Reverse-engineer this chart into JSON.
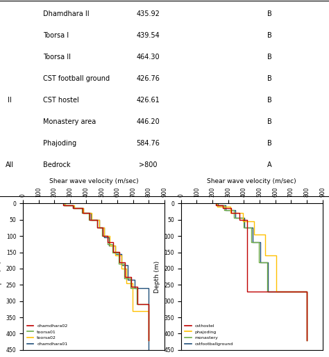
{
  "table": {
    "rows": [
      [
        "Dhamdhara II",
        "435.92",
        "B"
      ],
      [
        "Toorsa I",
        "439.54",
        "B"
      ],
      [
        "Toorsa II",
        "464.30",
        "B"
      ],
      [
        "CST football ground",
        "426.76",
        "B"
      ],
      [
        "CST hostel",
        "426.61",
        "B"
      ],
      [
        "Monastery area",
        "446.20",
        "B"
      ],
      [
        "Phajoding",
        "584.76",
        "B"
      ],
      [
        "Bedrock",
        ">800",
        "A"
      ]
    ]
  },
  "left_plot": {
    "title": "Shear wave velocity (m/sec)",
    "ylabel": "Depth (m)",
    "xlim": [
      0,
      900
    ],
    "ylim": [
      450,
      0
    ],
    "xticks": [
      0,
      100,
      200,
      300,
      400,
      500,
      600,
      700,
      800,
      900
    ],
    "yticks": [
      0,
      50,
      100,
      150,
      200,
      250,
      300,
      350,
      400,
      450
    ],
    "curves": {
      "dhamdhara01": {
        "color": "#1f4e79",
        "depths": [
          0,
          5,
          5,
          15,
          15,
          30,
          30,
          50,
          50,
          75,
          75,
          105,
          105,
          130,
          130,
          155,
          155,
          190,
          190,
          235,
          235,
          260,
          260,
          450
        ],
        "velocities": [
          260,
          260,
          320,
          320,
          385,
          385,
          430,
          430,
          485,
          485,
          515,
          515,
          545,
          545,
          585,
          585,
          625,
          625,
          665,
          665,
          710,
          710,
          800,
          800
        ]
      },
      "toorsa02": {
        "color": "#ffc000",
        "depths": [
          0,
          5,
          5,
          15,
          15,
          30,
          30,
          50,
          50,
          75,
          75,
          100,
          100,
          130,
          130,
          160,
          160,
          200,
          200,
          245,
          245,
          330,
          330,
          420
        ],
        "velocities": [
          270,
          270,
          325,
          325,
          385,
          385,
          435,
          435,
          485,
          485,
          515,
          515,
          550,
          550,
          585,
          585,
          625,
          625,
          655,
          655,
          695,
          695,
          800,
          800
        ]
      },
      "toorsa01": {
        "color": "#70ad47",
        "depths": [
          0,
          5,
          5,
          15,
          15,
          30,
          30,
          50,
          50,
          75,
          75,
          100,
          100,
          125,
          125,
          150,
          150,
          185,
          185,
          230,
          230,
          260,
          260,
          310,
          310,
          420
        ],
        "velocities": [
          260,
          260,
          315,
          315,
          375,
          375,
          418,
          418,
          472,
          472,
          502,
          502,
          538,
          538,
          568,
          568,
          608,
          608,
          643,
          643,
          683,
          683,
          723,
          723,
          800,
          800
        ]
      },
      "dhamdhara02": {
        "color": "#c00000",
        "depths": [
          0,
          5,
          5,
          15,
          15,
          30,
          30,
          50,
          50,
          75,
          75,
          100,
          100,
          120,
          120,
          148,
          148,
          180,
          180,
          225,
          225,
          255,
          255,
          310,
          310,
          420
        ],
        "velocities": [
          255,
          255,
          318,
          318,
          378,
          378,
          422,
          422,
          473,
          473,
          506,
          506,
          540,
          540,
          572,
          572,
          612,
          612,
          650,
          650,
          688,
          688,
          728,
          728,
          800,
          800
        ]
      }
    },
    "legend_order": [
      "dhamdhara02",
      "toorsa01",
      "toorsa02",
      "dhamdhara01"
    ],
    "legend_labels": [
      "dhamdhara02",
      "toorsa01",
      "toorsa02",
      "dhamdhara01"
    ],
    "legend_colors": [
      "#c00000",
      "#70ad47",
      "#ffc000",
      "#1f4e79"
    ]
  },
  "right_plot": {
    "title": "Shear wave velocity (m/sec)",
    "ylabel": "Depth (m)",
    "xlim": [
      0,
      900
    ],
    "ylim": [
      450,
      0
    ],
    "xticks": [
      0,
      100,
      200,
      300,
      400,
      500,
      600,
      700,
      800,
      900
    ],
    "yticks": [
      0,
      50,
      100,
      150,
      200,
      250,
      300,
      350,
      400,
      450
    ],
    "curves": {
      "cstfootballground": {
        "color": "#1f4e79",
        "depths": [
          0,
          5,
          5,
          20,
          20,
          45,
          45,
          75,
          75,
          120,
          120,
          180,
          180,
          270,
          270,
          420
        ],
        "velocities": [
          235,
          235,
          285,
          285,
          345,
          345,
          405,
          405,
          455,
          455,
          505,
          505,
          555,
          555,
          800,
          800
        ]
      },
      "monastery": {
        "color": "#70ad47",
        "depths": [
          0,
          5,
          5,
          20,
          20,
          45,
          45,
          75,
          75,
          120,
          120,
          180,
          180,
          270,
          270,
          420
        ],
        "velocities": [
          225,
          225,
          275,
          275,
          335,
          335,
          398,
          398,
          448,
          448,
          498,
          498,
          548,
          548,
          800,
          800
        ]
      },
      "phajoding": {
        "color": "#ffc000",
        "depths": [
          0,
          10,
          10,
          30,
          30,
          55,
          55,
          95,
          95,
          160,
          160,
          270,
          270,
          420
        ],
        "velocities": [
          230,
          230,
          315,
          315,
          395,
          395,
          465,
          465,
          535,
          535,
          605,
          605,
          800,
          800
        ]
      },
      "csthostel": {
        "color": "#c00000",
        "depths": [
          0,
          5,
          5,
          15,
          15,
          30,
          30,
          50,
          50,
          270,
          270,
          420
        ],
        "velocities": [
          220,
          220,
          265,
          265,
          318,
          318,
          372,
          372,
          422,
          422,
          800,
          800
        ]
      }
    },
    "legend_order": [
      "csthostel",
      "phajoding",
      "monastery",
      "cstfootballground"
    ],
    "legend_labels": [
      "csthostel",
      "phajoding",
      "monastery",
      "cstfootballground"
    ],
    "legend_colors": [
      "#c00000",
      "#ffc000",
      "#70ad47",
      "#1f4e79"
    ]
  }
}
